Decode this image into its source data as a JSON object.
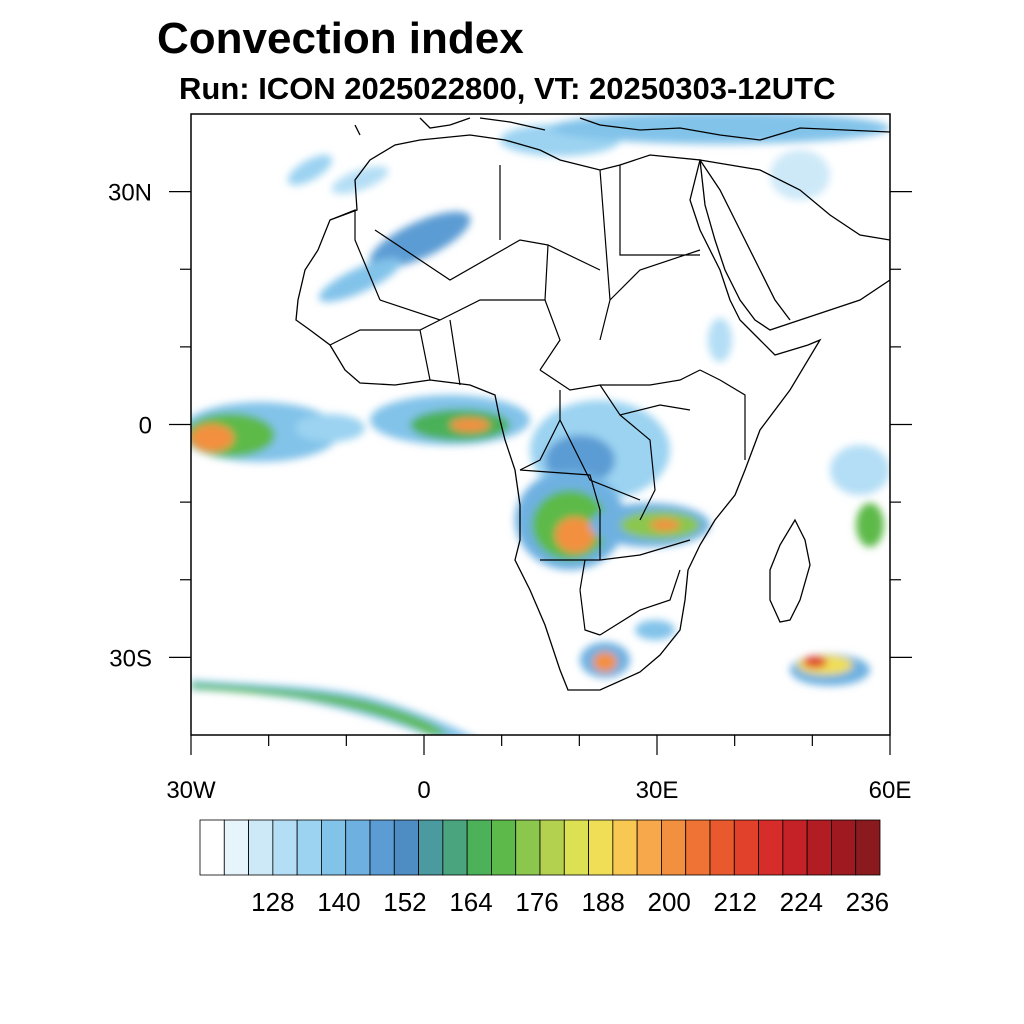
{
  "title": "Convection index",
  "subtitle": "Run: ICON 2025022800,  VT: 20250303-12UTC",
  "map": {
    "lon_range": [
      -30,
      60
    ],
    "lat_range": [
      -40,
      40
    ],
    "x_ticks": [
      {
        "lon": -30,
        "label": "30W"
      },
      {
        "lon": 0,
        "label": "0"
      },
      {
        "lon": 30,
        "label": "30E"
      },
      {
        "lon": 60,
        "label": "60E"
      }
    ],
    "y_ticks": [
      {
        "lat": 30,
        "label": "30N"
      },
      {
        "lat": 0,
        "label": "0"
      },
      {
        "lat": -30,
        "label": "30S"
      }
    ]
  },
  "colorbar": {
    "colors": [
      "#ffffff",
      "#e6f4fc",
      "#cde9f8",
      "#b4def5",
      "#9bd3f1",
      "#82c3ea",
      "#6eb1e1",
      "#5b9cd4",
      "#4e8cc4",
      "#4b9a9f",
      "#4aa57e",
      "#4cb159",
      "#5dba4a",
      "#8bc64d",
      "#b3d04f",
      "#dce053",
      "#f0de57",
      "#f8c853",
      "#f6a84a",
      "#f39040",
      "#ee7335",
      "#e85a2e",
      "#e1412a",
      "#d62d2a",
      "#c52228",
      "#b21d24",
      "#9e1a20",
      "#8a1a1e"
    ],
    "labels": [
      "128",
      "140",
      "152",
      "164",
      "176",
      "188",
      "200",
      "212",
      "224",
      "236"
    ]
  }
}
